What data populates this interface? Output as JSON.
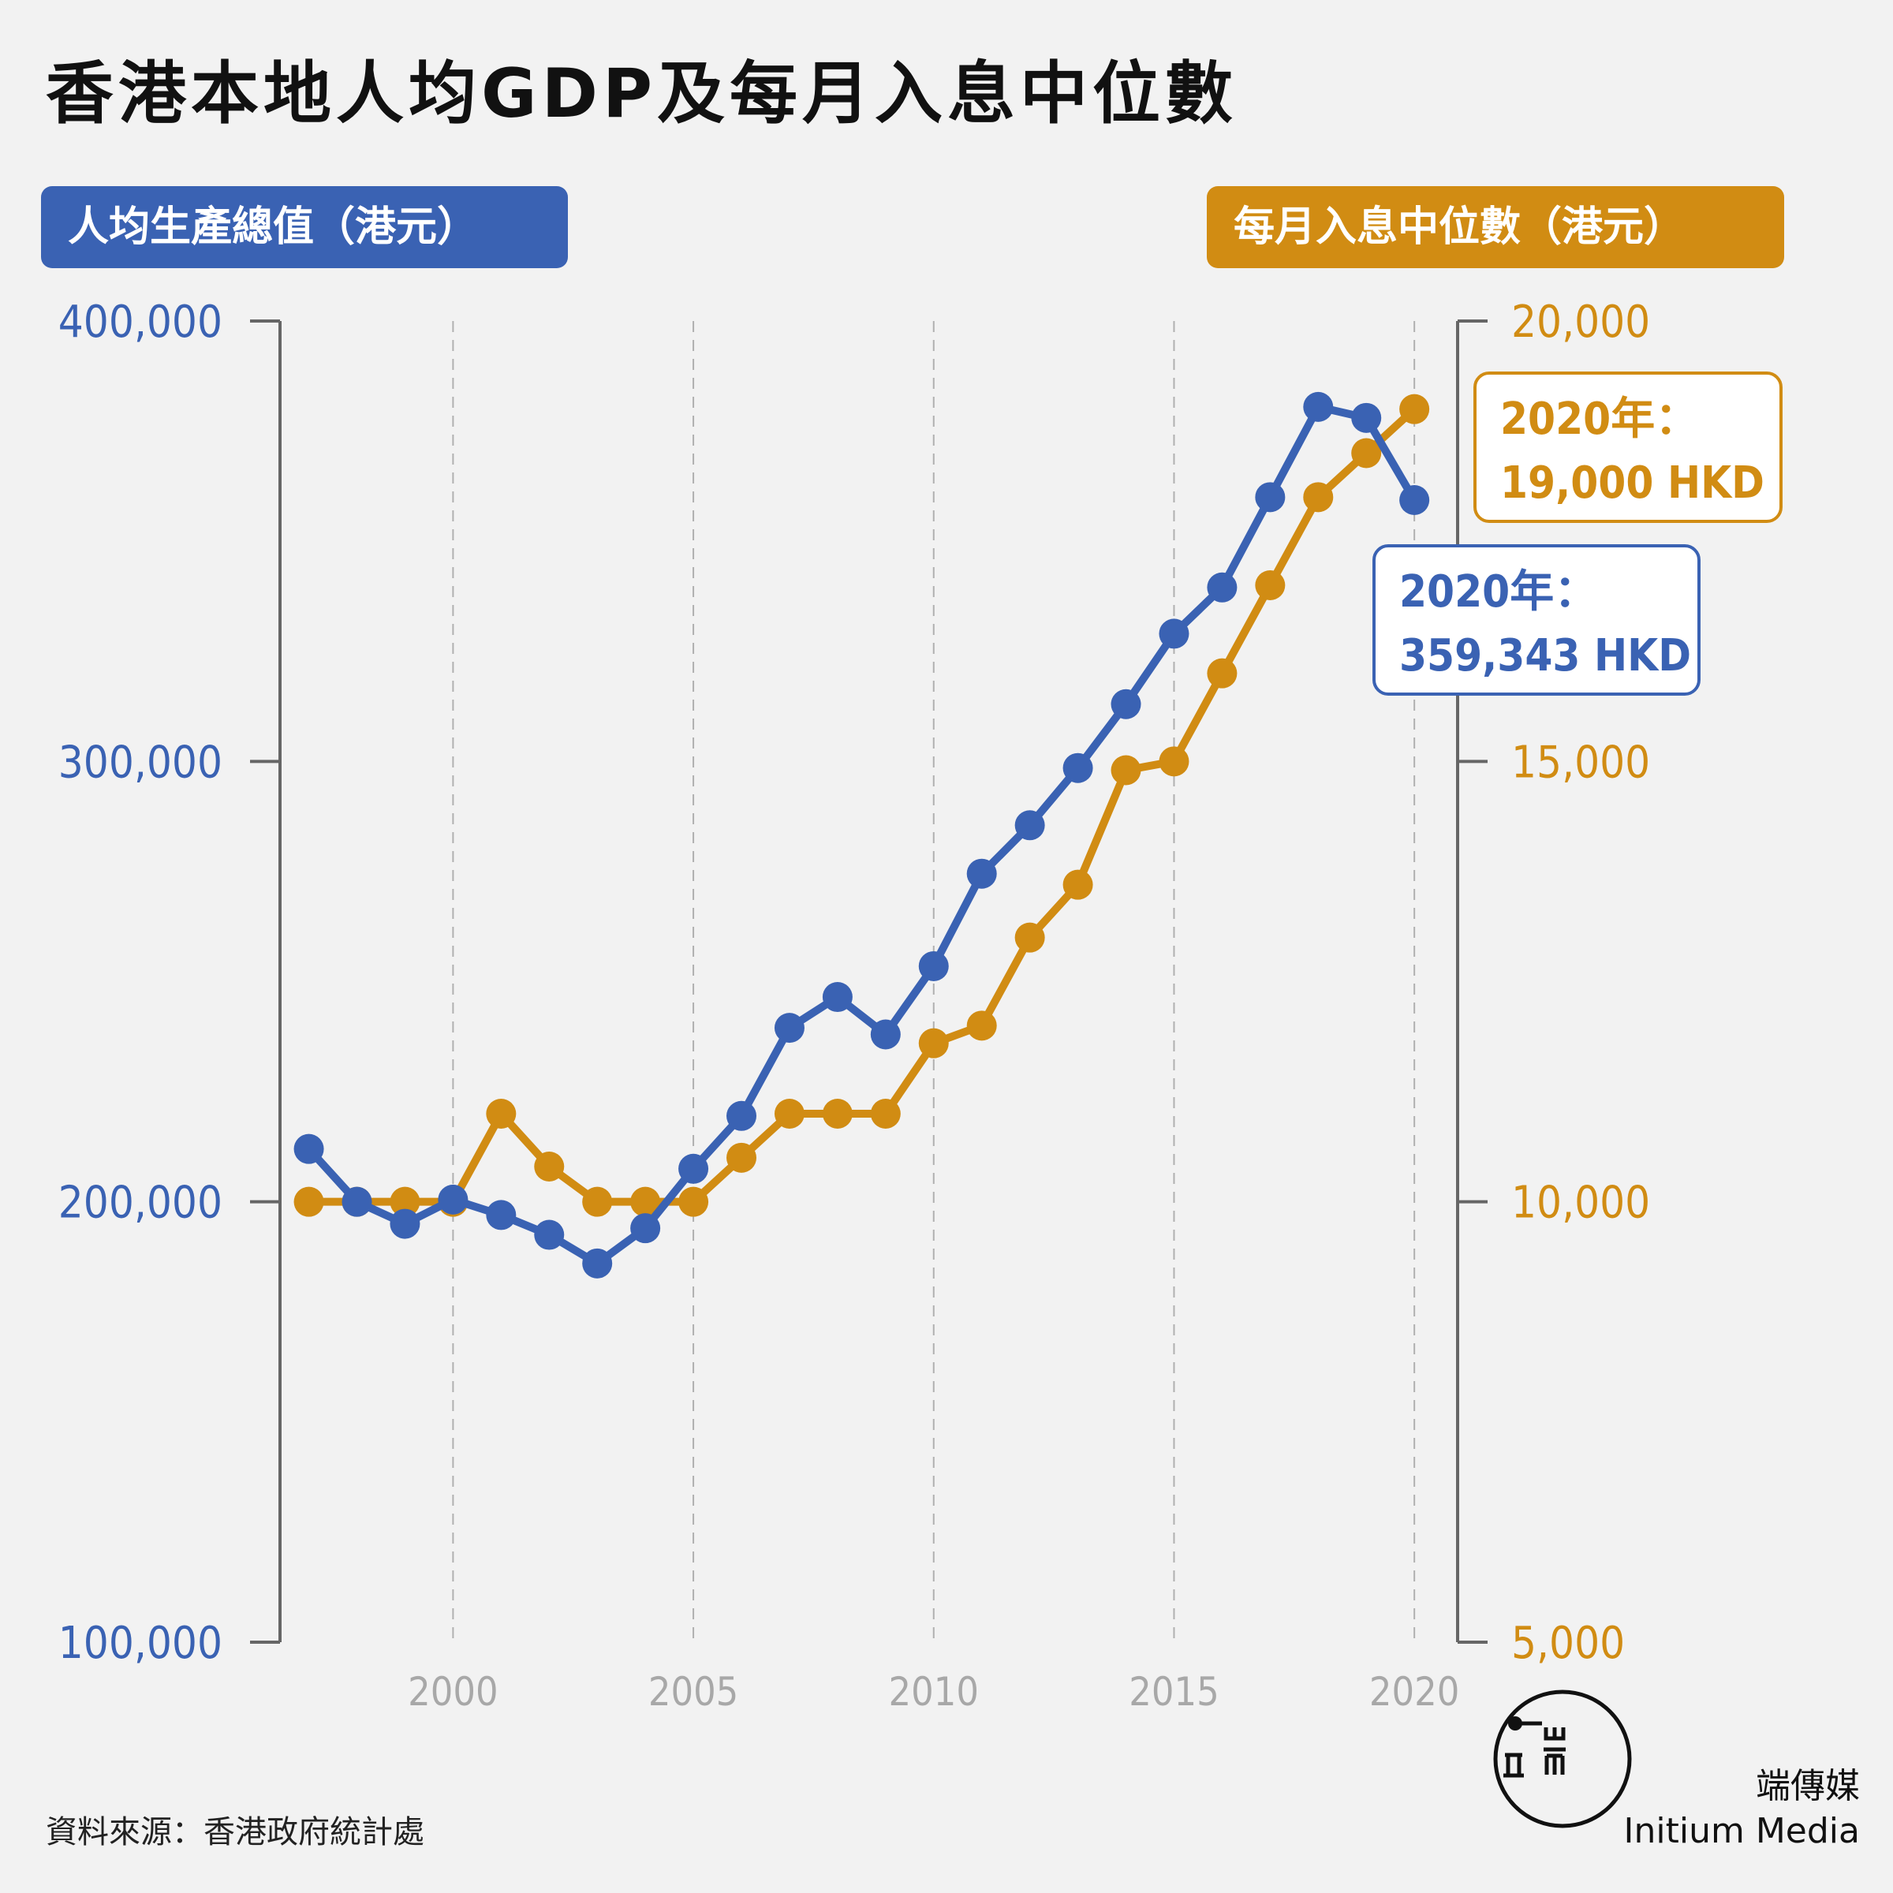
{
  "title": "香港本地人均GDP及每月入息中位數",
  "left_axis_title": "人均生產總值（港元）",
  "right_axis_title": "每月入息中位數（港元）",
  "source": "資料來源：香港政府統計處",
  "brand": {
    "zh": "端傳媒",
    "en": "Initium Media",
    "logo_icon": "initium-logo-icon"
  },
  "colors": {
    "gdp": "#3a62b3",
    "income": "#d18c13",
    "axis": "#666666",
    "grid": "#b0b0b0",
    "xtick": "#a8a8a8"
  },
  "chart_data": {
    "type": "line",
    "x": [
      1997,
      1998,
      1999,
      2000,
      2001,
      2002,
      2003,
      2004,
      2005,
      2006,
      2007,
      2008,
      2009,
      2010,
      2011,
      2012,
      2013,
      2014,
      2015,
      2016,
      2017,
      2018,
      2019,
      2020
    ],
    "x_ticks": [
      2000,
      2005,
      2010,
      2015,
      2020
    ],
    "x_tick_labels": [
      "2000",
      "2005",
      "2010",
      "2015",
      "2020"
    ],
    "xlim": [
      1996.4,
      2020.9
    ],
    "series": [
      {
        "key": "gdp",
        "axis": "left",
        "values": [
          212000,
          200000,
          195000,
          200500,
          197000,
          192500,
          186000,
          194000,
          207500,
          219500,
          239500,
          246500,
          238000,
          253500,
          274500,
          285500,
          298500,
          313000,
          329000,
          339500,
          360000,
          380500,
          378000,
          359343
        ]
      },
      {
        "key": "income",
        "axis": "right",
        "values": [
          10000,
          10000,
          10000,
          10000,
          11000,
          10400,
          10000,
          10000,
          10000,
          10500,
          11000,
          11000,
          11000,
          11800,
          12000,
          13000,
          13600,
          14900,
          15000,
          16000,
          17000,
          18000,
          18500,
          19000
        ]
      }
    ],
    "y_left": {
      "ylim": [
        100000,
        400000
      ],
      "ticks": [
        100000,
        200000,
        300000,
        400000
      ],
      "tick_labels": [
        "100,000",
        "200,000",
        "300,000",
        "400,000"
      ]
    },
    "y_right": {
      "ylim": [
        5000,
        20000
      ],
      "ticks": [
        5000,
        10000,
        15000,
        20000
      ],
      "tick_labels": [
        "5,000",
        "10,000",
        "15,000",
        "20,000"
      ]
    },
    "annotations": [
      {
        "series": "income",
        "line1": "2020年：",
        "line2": "19,000 HKD"
      },
      {
        "series": "gdp",
        "line1": "2020年：",
        "line2": "359,343 HKD"
      }
    ],
    "grid": "vertical dashed at x ticks",
    "legend": "axis title pills top-left (GDP) and top-right (income)"
  }
}
